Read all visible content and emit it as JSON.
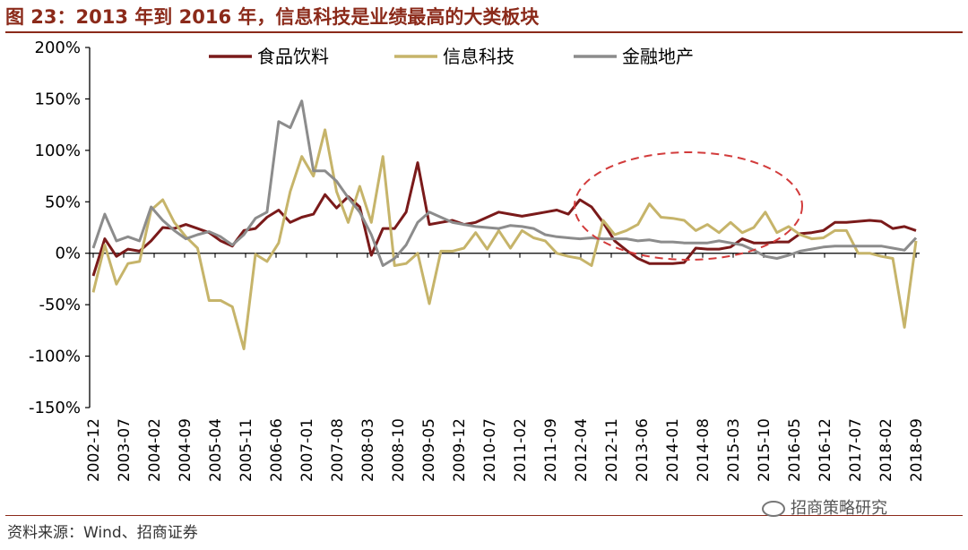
{
  "title": "图 23：2013 年到 2016 年，信息科技是业绩最高的大类板块",
  "source": "资料来源：Wind、招商证券",
  "watermark": "招商策略研究",
  "chart_data": {
    "type": "line",
    "ylim": [
      -150,
      200
    ],
    "yticks": [
      -150,
      -100,
      -50,
      0,
      50,
      100,
      150,
      200
    ],
    "ytick_labels": [
      "-150%",
      "-100%",
      "-50%",
      "0%",
      "50%",
      "100%",
      "150%",
      "200%"
    ],
    "x_tick_labels": [
      "2002-12",
      "2003-07",
      "2004-02",
      "2004-09",
      "2005-04",
      "2005-11",
      "2006-06",
      "2007-01",
      "2007-08",
      "2008-03",
      "2008-10",
      "2009-05",
      "2009-12",
      "2010-07",
      "2011-02",
      "2011-09",
      "2012-04",
      "2012-11",
      "2013-06",
      "2014-01",
      "2014-08",
      "2015-03",
      "2015-10",
      "2016-05",
      "2016-12",
      "2017-07",
      "2018-02",
      "2018-09"
    ],
    "legend_position": "top",
    "grid": false,
    "series": [
      {
        "name": "食品饮料",
        "color": "#7a1a1a",
        "values": [
          -22,
          14,
          -3,
          4,
          2,
          12,
          25,
          24,
          28,
          24,
          20,
          12,
          7,
          22,
          24,
          35,
          42,
          30,
          35,
          38,
          57,
          44,
          55,
          45,
          -2,
          24,
          24,
          40,
          88,
          28,
          30,
          32,
          28,
          30,
          35,
          40,
          38,
          36,
          38,
          40,
          42,
          38,
          52,
          45,
          30,
          12,
          3,
          -5,
          -10,
          -10,
          -10,
          -9,
          5,
          4,
          4,
          6,
          14,
          10,
          10,
          11,
          11,
          19,
          20,
          22,
          30,
          30,
          31,
          32,
          31,
          24,
          26,
          22
        ]
      },
      {
        "name": "信息科技",
        "color": "#c6b46a",
        "values": [
          -38,
          8,
          -30,
          -10,
          -8,
          42,
          52,
          30,
          16,
          5,
          -46,
          -46,
          -52,
          -93,
          -1,
          -8,
          10,
          60,
          94,
          75,
          120,
          60,
          30,
          65,
          30,
          94,
          -12,
          -10,
          0,
          -49,
          2,
          2,
          5,
          20,
          4,
          22,
          5,
          22,
          15,
          12,
          0,
          -3,
          -5,
          -12,
          32,
          18,
          22,
          28,
          48,
          35,
          34,
          32,
          22,
          28,
          20,
          30,
          20,
          25,
          40,
          20,
          26,
          18,
          14,
          15,
          22,
          22,
          0,
          0,
          -3,
          -5,
          -72,
          12
        ]
      },
      {
        "name": "金融地产",
        "color": "#8c8c8c",
        "values": [
          5,
          38,
          12,
          16,
          12,
          45,
          32,
          22,
          14,
          18,
          21,
          16,
          8,
          18,
          34,
          40,
          128,
          122,
          148,
          80,
          80,
          70,
          54,
          40,
          18,
          -12,
          -5,
          8,
          30,
          40,
          35,
          30,
          28,
          26,
          25,
          24,
          27,
          26,
          24,
          18,
          16,
          15,
          14,
          15,
          14,
          14,
          14,
          12,
          13,
          11,
          11,
          10,
          10,
          10,
          12,
          10,
          8,
          3,
          -3,
          -5,
          -2,
          2,
          4,
          6,
          7,
          7,
          7,
          7,
          7,
          5,
          3,
          15
        ]
      }
    ],
    "annotation": "dashed red ellipse highlighting 2013-2016 period"
  }
}
